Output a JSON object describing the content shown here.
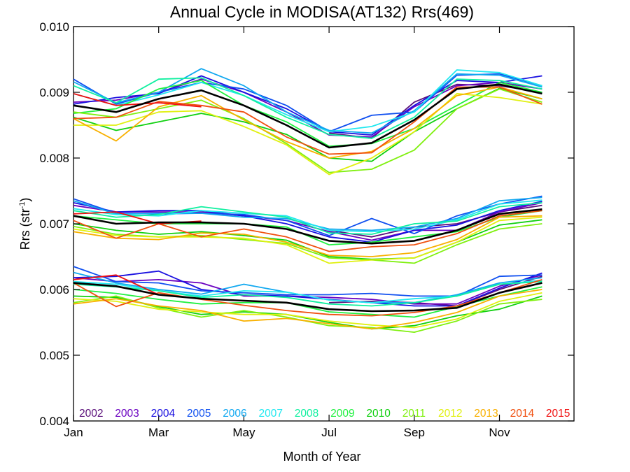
{
  "chart_data": {
    "type": "line",
    "title": "Annual Cycle in MODISA(AT132) Rrs(469)",
    "xlabel": "Month of Year",
    "ylabel_main": "Rrs (str",
    "ylabel_sup": "-1",
    "ylabel_end": ")",
    "xlim": [
      1,
      12.75
    ],
    "ylim": [
      0.004,
      0.01
    ],
    "yticks": [
      {
        "value": 0.004,
        "label": "0.004"
      },
      {
        "value": 0.005,
        "label": "0.005"
      },
      {
        "value": 0.006,
        "label": "0.006"
      },
      {
        "value": 0.007,
        "label": "0.007"
      },
      {
        "value": 0.008,
        "label": "0.008"
      },
      {
        "value": 0.009,
        "label": "0.009"
      },
      {
        "value": 0.01,
        "label": "0.010"
      }
    ],
    "xticks": [
      {
        "value": 1,
        "label": "Jan"
      },
      {
        "value": 3,
        "label": "Mar"
      },
      {
        "value": 5,
        "label": "May"
      },
      {
        "value": 7,
        "label": "Jul"
      },
      {
        "value": 9,
        "label": "Sep"
      },
      {
        "value": 11,
        "label": "Nov"
      }
    ],
    "x": [
      1,
      2,
      3,
      4,
      5,
      6,
      7,
      8,
      9,
      10,
      11,
      12
    ],
    "series": [
      {
        "name": "2002",
        "color": "#5a0f7a",
        "groups": [
          [
            null,
            null,
            null,
            null,
            null,
            null,
            0.00838,
            0.0083,
            0.00885,
            0.00912,
            0.0091,
            0.009
          ],
          [
            null,
            null,
            null,
            null,
            null,
            null,
            0.0069,
            0.0068,
            0.00695,
            0.007,
            0.00718,
            0.00728
          ],
          [
            null,
            null,
            null,
            null,
            null,
            null,
            0.0058,
            0.00582,
            0.0058,
            0.00575,
            0.006,
            0.0062
          ]
        ]
      },
      {
        "name": "2003",
        "color": "#6a00c0",
        "groups": [
          [
            0.00885,
            0.00888,
            0.009,
            0.0092,
            0.009,
            0.0087,
            0.00835,
            0.00832,
            0.00878,
            0.0091,
            0.00915,
            0.00905
          ],
          [
            0.00728,
            0.00718,
            0.00718,
            0.00718,
            0.00712,
            0.00705,
            0.00688,
            0.00675,
            0.0069,
            0.0069,
            0.00718,
            0.00732
          ],
          [
            0.00618,
            0.00612,
            0.00615,
            0.0061,
            0.0059,
            0.0059,
            0.00588,
            0.00585,
            0.00578,
            0.00578,
            0.00605,
            0.00622
          ]
        ]
      },
      {
        "name": "2004",
        "color": "#1a10e0",
        "groups": [
          [
            0.00882,
            0.00892,
            0.00898,
            0.00925,
            0.009,
            0.00875,
            0.0084,
            0.00835,
            0.0088,
            0.00918,
            0.00915,
            0.00925
          ],
          [
            0.00732,
            0.00718,
            0.0072,
            0.0072,
            0.00712,
            0.007,
            0.0068,
            0.00672,
            0.0069,
            0.00698,
            0.0072,
            0.00734
          ],
          [
            0.00618,
            0.0062,
            0.00628,
            0.006,
            0.00592,
            0.0059,
            0.00585,
            0.0058,
            0.00575,
            0.00575,
            0.00602,
            0.00625
          ]
        ]
      },
      {
        "name": "2005",
        "color": "#1050f0",
        "groups": [
          [
            0.0092,
            0.00882,
            0.009,
            0.00915,
            0.00905,
            0.0088,
            0.0084,
            0.00865,
            0.0087,
            0.00926,
            0.00928,
            0.0091
          ],
          [
            0.00738,
            0.00716,
            0.00715,
            0.00716,
            0.00714,
            0.00705,
            0.00682,
            0.00708,
            0.00685,
            0.00712,
            0.0073,
            0.00742
          ],
          [
            0.00635,
            0.00612,
            0.0061,
            0.00598,
            0.00595,
            0.00592,
            0.00592,
            0.00594,
            0.0059,
            0.0059,
            0.0062,
            0.00622
          ]
        ]
      },
      {
        "name": "2006",
        "color": "#10a8f0",
        "groups": [
          [
            0.00916,
            0.00884,
            0.009,
            0.00936,
            0.0091,
            0.0087,
            0.00842,
            0.00838,
            0.00872,
            0.00928,
            0.00926,
            0.00908
          ],
          [
            0.00735,
            0.00715,
            0.00716,
            0.00716,
            0.0071,
            0.00708,
            0.00692,
            0.0069,
            0.00695,
            0.00708,
            0.00735,
            0.0074
          ],
          [
            0.00626,
            0.0061,
            0.006,
            0.00593,
            0.00608,
            0.00596,
            0.00584,
            0.0058,
            0.0058,
            0.00592,
            0.0061,
            0.00618
          ]
        ]
      },
      {
        "name": "2007",
        "color": "#20e8f0",
        "groups": [
          [
            0.00898,
            0.0088,
            0.00896,
            0.00915,
            0.00895,
            0.00866,
            0.0084,
            0.00848,
            0.0087,
            0.00934,
            0.0093,
            0.0091
          ],
          [
            0.00723,
            0.00714,
            0.00712,
            0.0072,
            0.00716,
            0.00712,
            0.0069,
            0.00688,
            0.00692,
            0.00706,
            0.0073,
            0.00736
          ],
          [
            0.00612,
            0.00608,
            0.00598,
            0.0059,
            0.00598,
            0.00596,
            0.00584,
            0.0058,
            0.00586,
            0.0059,
            0.00608,
            0.00614
          ]
        ]
      },
      {
        "name": "2008",
        "color": "#10f0a0",
        "groups": [
          [
            0.0091,
            0.00884,
            0.0092,
            0.00922,
            0.00895,
            0.00862,
            0.00836,
            0.0083,
            0.00862,
            0.0092,
            0.00918,
            0.00905
          ],
          [
            0.0072,
            0.0071,
            0.00714,
            0.00726,
            0.00718,
            0.0071,
            0.00686,
            0.00684,
            0.007,
            0.00704,
            0.00726,
            0.00732
          ],
          [
            0.00608,
            0.00604,
            0.00598,
            0.00588,
            0.00592,
            0.00588,
            0.00578,
            0.00575,
            0.0058,
            0.0059,
            0.00608,
            0.00612
          ]
        ]
      },
      {
        "name": "2009",
        "color": "#20f040",
        "groups": [
          [
            0.00868,
            0.00875,
            0.00905,
            0.00918,
            0.0088,
            0.00855,
            0.00818,
            0.00822,
            0.00845,
            0.0088,
            0.00915,
            0.009
          ],
          [
            0.00712,
            0.00706,
            0.007,
            0.007,
            0.007,
            0.00695,
            0.00668,
            0.00672,
            0.0068,
            0.00688,
            0.0071,
            0.0072
          ],
          [
            0.006,
            0.00594,
            0.00585,
            0.00578,
            0.0058,
            0.0058,
            0.00566,
            0.00562,
            0.00558,
            0.00574,
            0.0059,
            0.00604
          ]
        ]
      },
      {
        "name": "2010",
        "color": "#10d010",
        "groups": [
          [
            0.00862,
            0.00842,
            0.00855,
            0.00868,
            0.00855,
            0.00836,
            0.008,
            0.00795,
            0.0084,
            0.00875,
            0.00906,
            0.0089
          ],
          [
            0.007,
            0.0069,
            0.00684,
            0.00688,
            0.00682,
            0.00675,
            0.0065,
            0.00646,
            0.00648,
            0.00672,
            0.00698,
            0.00706
          ],
          [
            0.0059,
            0.00588,
            0.00574,
            0.00562,
            0.00566,
            0.00562,
            0.0055,
            0.0054,
            0.00545,
            0.0056,
            0.0057,
            0.0059
          ]
        ]
      },
      {
        "name": "2011",
        "color": "#80f010",
        "groups": [
          [
            0.0087,
            0.00862,
            0.00875,
            0.00888,
            0.0086,
            0.00822,
            0.00778,
            0.00783,
            0.00812,
            0.00875,
            0.00905,
            0.00885
          ],
          [
            0.00696,
            0.00684,
            0.0068,
            0.00682,
            0.00676,
            0.0067,
            0.00648,
            0.00645,
            0.0064,
            0.00668,
            0.00692,
            0.007
          ],
          [
            0.0058,
            0.0059,
            0.00572,
            0.00558,
            0.00568,
            0.00558,
            0.00545,
            0.00542,
            0.00535,
            0.00552,
            0.00578,
            0.00585
          ]
        ]
      },
      {
        "name": "2012",
        "color": "#e0f010",
        "groups": [
          [
            0.0085,
            0.0085,
            0.0087,
            0.00872,
            0.00848,
            0.0082,
            0.00775,
            0.008,
            0.0084,
            0.00898,
            0.00892,
            0.00882
          ],
          [
            0.00692,
            0.00682,
            0.0068,
            0.0068,
            0.00678,
            0.00668,
            0.0064,
            0.00645,
            0.00648,
            0.00672,
            0.00705,
            0.0071
          ],
          [
            0.00586,
            0.00582,
            0.0057,
            0.00566,
            0.00562,
            0.00562,
            0.00552,
            0.00546,
            0.00542,
            0.00555,
            0.00582,
            0.00595
          ]
        ]
      },
      {
        "name": "2013",
        "color": "#f8b000",
        "groups": [
          [
            0.0086,
            0.00826,
            0.00878,
            0.00895,
            0.00858,
            0.00825,
            0.008,
            0.0081,
            0.00845,
            0.00895,
            0.00908,
            0.0089
          ],
          [
            0.00688,
            0.00678,
            0.00676,
            0.00686,
            0.00684,
            0.00672,
            0.00652,
            0.0065,
            0.00656,
            0.00676,
            0.0071,
            0.00712
          ],
          [
            0.00578,
            0.00586,
            0.00575,
            0.00568,
            0.00552,
            0.00556,
            0.00548,
            0.0054,
            0.0055,
            0.00565,
            0.0059,
            0.006
          ]
        ]
      },
      {
        "name": "2014",
        "color": "#f05010",
        "groups": [
          [
            0.0086,
            0.00862,
            0.00886,
            0.0088,
            0.0087,
            0.00832,
            0.00806,
            0.00808,
            0.00855,
            0.00908,
            0.00908,
            0.00882
          ],
          [
            0.00705,
            0.00678,
            0.007,
            0.0068,
            0.00692,
            0.0068,
            0.00658,
            0.00665,
            0.00668,
            0.00685,
            0.00712,
            0.0072
          ],
          [
            0.0061,
            0.00574,
            0.00595,
            0.00585,
            0.00576,
            0.00568,
            0.00562,
            0.0056,
            0.00565,
            0.00575,
            0.00595,
            0.00615
          ]
        ]
      },
      {
        "name": "2015",
        "color": "#f01010",
        "groups": [
          [
            0.00898,
            0.0088,
            0.00884,
            0.00878,
            null,
            null,
            null,
            null,
            null,
            null,
            null,
            null
          ],
          [
            0.00715,
            0.00718,
            0.007,
            0.00704,
            null,
            null,
            null,
            null,
            null,
            null,
            null,
            null
          ],
          [
            0.00615,
            0.00622,
            0.00592,
            null,
            null,
            null,
            null,
            null,
            null,
            null,
            null,
            null
          ]
        ]
      },
      {
        "name": "",
        "color": "#000000",
        "groups": [
          [
            0.0088,
            0.0087,
            0.0089,
            0.00903,
            0.0088,
            0.0085,
            0.00816,
            0.00823,
            0.00858,
            0.00905,
            0.00912,
            0.00898
          ],
          [
            0.00712,
            0.007,
            0.00702,
            0.00702,
            0.007,
            0.00692,
            0.00674,
            0.0067,
            0.00674,
            0.0069,
            0.00715,
            0.00722
          ],
          [
            0.0061,
            0.00605,
            0.00592,
            0.00586,
            0.00583,
            0.0058,
            0.0057,
            0.00567,
            0.00568,
            0.00572,
            0.00595,
            0.0061
          ]
        ]
      }
    ],
    "legend_placement": "bottom-inside",
    "grid": false
  }
}
